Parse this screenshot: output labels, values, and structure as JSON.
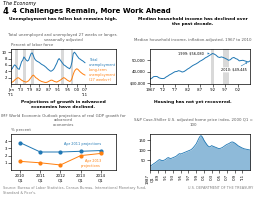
{
  "title": "4 Challenges Remain, More Work Ahead",
  "subtitle": "The Economy",
  "annotations": [
    "4",
    "Source: Bureau of Labor Statistics, Census Bureau, International Monetary Fund,",
    "Standard & Poor's.",
    "U.S. DEPARTMENT OF THE TREASURY"
  ],
  "chart_data": [
    {
      "type": "line",
      "title": "Unemployment has fallen but remains high.",
      "subtitle": "Total unemployed and unemployed 27 weeks or longer, seasonally adjusted",
      "y_label": "Percent of labor force",
      "categories": [
        "Jan\n'71",
        null,
        null,
        null,
        null,
        null,
        null,
        null,
        "'73",
        null,
        null,
        null,
        null,
        null,
        null,
        null,
        "'79",
        null,
        null,
        null,
        null,
        null,
        null,
        null,
        "'82",
        null,
        null,
        null,
        null,
        null,
        null,
        null,
        "'87",
        null,
        null,
        null,
        null,
        null,
        null,
        null,
        "'91",
        null,
        null,
        null,
        null,
        null,
        null,
        null,
        "'95",
        null,
        null,
        null,
        null,
        null,
        null,
        null,
        "'00",
        null,
        null,
        null,
        null,
        null,
        null,
        "'07\n'11"
      ],
      "series": [
        {
          "name": "Total\nunemployment",
          "values": [
            4.5,
            4.8,
            5.5,
            6.0,
            5.8,
            5.2,
            4.8,
            4.6,
            5.8,
            7.0,
            7.5,
            8.5,
            8.0,
            7.5,
            7.2,
            7.5,
            8.5,
            9.5,
            9.8,
            9.0,
            8.0,
            7.5,
            7.2,
            7.0,
            6.8,
            6.5,
            6.2,
            6.0,
            5.8,
            5.5,
            5.2,
            4.8,
            4.5,
            4.2,
            4.0,
            4.2,
            4.5,
            5.0,
            5.8,
            6.5,
            7.5,
            8.0,
            7.5,
            7.0,
            6.5,
            6.0,
            5.8,
            5.5,
            5.2,
            5.0,
            4.8,
            5.5,
            7.0,
            9.5,
            10.0,
            9.6,
            9.0,
            8.5,
            8.0,
            7.8,
            7.5,
            7.3,
            7.0,
            6.7
          ]
        },
        {
          "name": "Long-term\nunemployment\n(27 weeks+)",
          "values": [
            0.5,
            0.6,
            0.8,
            1.2,
            1.5,
            1.8,
            2.0,
            1.8,
            1.5,
            1.2,
            1.0,
            0.8,
            0.7,
            0.6,
            0.8,
            1.0,
            1.5,
            2.0,
            2.5,
            2.8,
            2.5,
            2.0,
            1.8,
            1.5,
            1.2,
            1.0,
            0.8,
            0.7,
            0.6,
            0.5,
            0.5,
            0.6,
            0.8,
            1.0,
            1.2,
            1.2,
            1.0,
            0.8,
            0.7,
            0.6,
            0.8,
            1.0,
            1.2,
            1.5,
            1.8,
            2.0,
            1.8,
            1.5,
            1.2,
            1.0,
            0.8,
            1.0,
            1.8,
            3.0,
            4.0,
            4.5,
            4.8,
            4.6,
            4.2,
            3.8,
            3.5,
            3.2,
            3.0,
            2.8
          ]
        }
      ],
      "shaded_ranges": [
        [
          3,
          6
        ],
        [
          10,
          13
        ],
        [
          17,
          20
        ],
        [
          43,
          45
        ],
        [
          51,
          53
        ]
      ],
      "ylim": [
        0,
        11
      ],
      "yticks": [
        2,
        4,
        6,
        8,
        10
      ]
    },
    {
      "type": "line",
      "title": "Median household income has declined over\nthe past decade.",
      "subtitle": "Median household income, inflation-adjusted, 1967 to 2010",
      "categories": [
        "1967",
        null,
        null,
        null,
        null,
        null,
        null,
        "'72",
        null,
        null,
        null,
        null,
        null,
        null,
        "'77",
        null,
        null,
        null,
        null,
        null,
        null,
        "'82",
        null,
        null,
        null,
        null,
        null,
        null,
        "'87",
        null,
        null,
        null,
        null,
        null,
        null,
        "'92",
        null,
        null,
        null,
        null,
        null,
        null,
        "'97",
        null,
        null,
        null,
        null,
        null,
        null,
        "'02",
        null,
        null,
        null,
        null,
        null,
        null,
        null
      ],
      "values": [
        33300,
        34100,
        35500,
        35700,
        35600,
        34500,
        34000,
        33800,
        34000,
        35200,
        36100,
        37200,
        38000,
        39000,
        39900,
        40100,
        40800,
        40400,
        39600,
        40000,
        41000,
        42200,
        43100,
        44300,
        45400,
        46200,
        47000,
        48000,
        49200,
        50000,
        51000,
        52200,
        53000,
        54000,
        55000,
        56000,
        55500,
        54500,
        53000,
        52500,
        53000,
        52500,
        51800,
        51000,
        50000,
        50500,
        52000,
        52500,
        51500,
        50900,
        49500,
        49800,
        50000,
        49500,
        49000,
        48500,
        49445
      ],
      "shaded_ranges": [
        [
          34,
          36
        ],
        [
          41,
          44
        ]
      ],
      "annotations": [
        {
          "text": "1999: $56,080",
          "index": 35
        },
        {
          "text": "2010: $49,445",
          "index": 56
        }
      ],
      "ylim": [
        29000,
        60000
      ],
      "yticks": [
        {
          "value": 30000,
          "label": "$30,000"
        },
        {
          "value": 40000,
          "label": "40,000"
        },
        {
          "value": 50000,
          "label": "50,000"
        }
      ]
    },
    {
      "type": "line",
      "title": "Projections of growth in advanced\neconomies have declined.",
      "subtitle": "IMF World Economic Outlook projections of real GDP growth for advanced\neconomies",
      "y_label": "% percent",
      "x": [
        2010.25,
        2011.25,
        2012.25,
        2013.25,
        2014.25
      ],
      "series": [
        {
          "name": "Apr 2011 projections",
          "values": [
            3.8,
            2.5,
            2.5,
            2.6,
            2.7
          ],
          "marker": "o"
        },
        {
          "name": "Apr 2013\nprojections",
          "values": [
            1.2,
            1.0,
            0.7,
            2.0,
            2.3
          ],
          "marker": "o"
        }
      ],
      "xlim": [
        2009.8,
        2015.0
      ],
      "xticks": [
        {
          "value": 2010.25,
          "label": "2010\nQ1"
        },
        {
          "value": 2011.25,
          "label": "2011\nQ1"
        },
        {
          "value": 2012.25,
          "label": "2012\nQ1"
        },
        {
          "value": 2013.25,
          "label": "2013\nQ1"
        },
        {
          "value": 2014.25,
          "label": "2014\nQ1"
        }
      ],
      "ylim": [
        0,
        5
      ],
      "yticks": [
        1,
        2,
        3,
        4
      ]
    },
    {
      "type": "area",
      "title": "Housing has not yet recovered.",
      "subtitle": "S&P Case-Shiller U.S. adjusted home price index, 2000 Q1 = 100",
      "categories": [
        "1987\nQ1",
        null,
        null,
        null,
        null,
        null,
        null,
        null,
        "'89",
        null,
        null,
        null,
        null,
        null,
        null,
        null,
        "'91",
        null,
        null,
        null,
        null,
        null,
        null,
        null,
        "'93",
        null,
        null,
        null,
        null,
        null,
        null,
        null,
        "'95",
        null,
        null,
        null,
        null,
        null,
        null,
        null,
        "'97",
        null,
        null,
        null,
        null,
        null,
        null,
        null,
        "'99",
        null,
        null,
        null,
        null,
        null,
        null,
        null,
        "'01",
        null,
        null,
        null,
        null,
        null,
        null,
        null,
        "'03",
        null,
        null,
        null,
        null,
        null,
        null,
        null,
        "'05",
        null,
        null,
        null,
        null,
        null,
        null,
        null,
        "'07",
        null,
        null,
        null,
        null,
        null,
        null,
        null,
        "'09",
        null,
        null,
        null,
        null,
        null,
        null,
        null,
        "'11",
        null,
        null,
        null,
        null,
        null,
        null,
        null,
        null
      ],
      "values": [
        20,
        22,
        25,
        28,
        32,
        35,
        38,
        42,
        46,
        50,
        52,
        50,
        48,
        47,
        48,
        50,
        52,
        56,
        60,
        62,
        60,
        58,
        58,
        60,
        62,
        64,
        66,
        68,
        72,
        76,
        80,
        82,
        80,
        82,
        84,
        86,
        88,
        90,
        92,
        94,
        96,
        98,
        100,
        103,
        107,
        112,
        118,
        124,
        130,
        140,
        150,
        160,
        168,
        172,
        168,
        160,
        150,
        142,
        135,
        128,
        122,
        118,
        116,
        118,
        122,
        120,
        118,
        116,
        114,
        112,
        110,
        108,
        107,
        108,
        110,
        112,
        115,
        118,
        122,
        125,
        128,
        130,
        132,
        135,
        138,
        140,
        140,
        138,
        135,
        132,
        128,
        124,
        120,
        118,
        115,
        112,
        110,
        108,
        106,
        105,
        104,
        103,
        102,
        101,
        100
      ],
      "ylim": [
        0,
        180
      ],
      "yticks": [
        50,
        100,
        150
      ]
    }
  ]
}
